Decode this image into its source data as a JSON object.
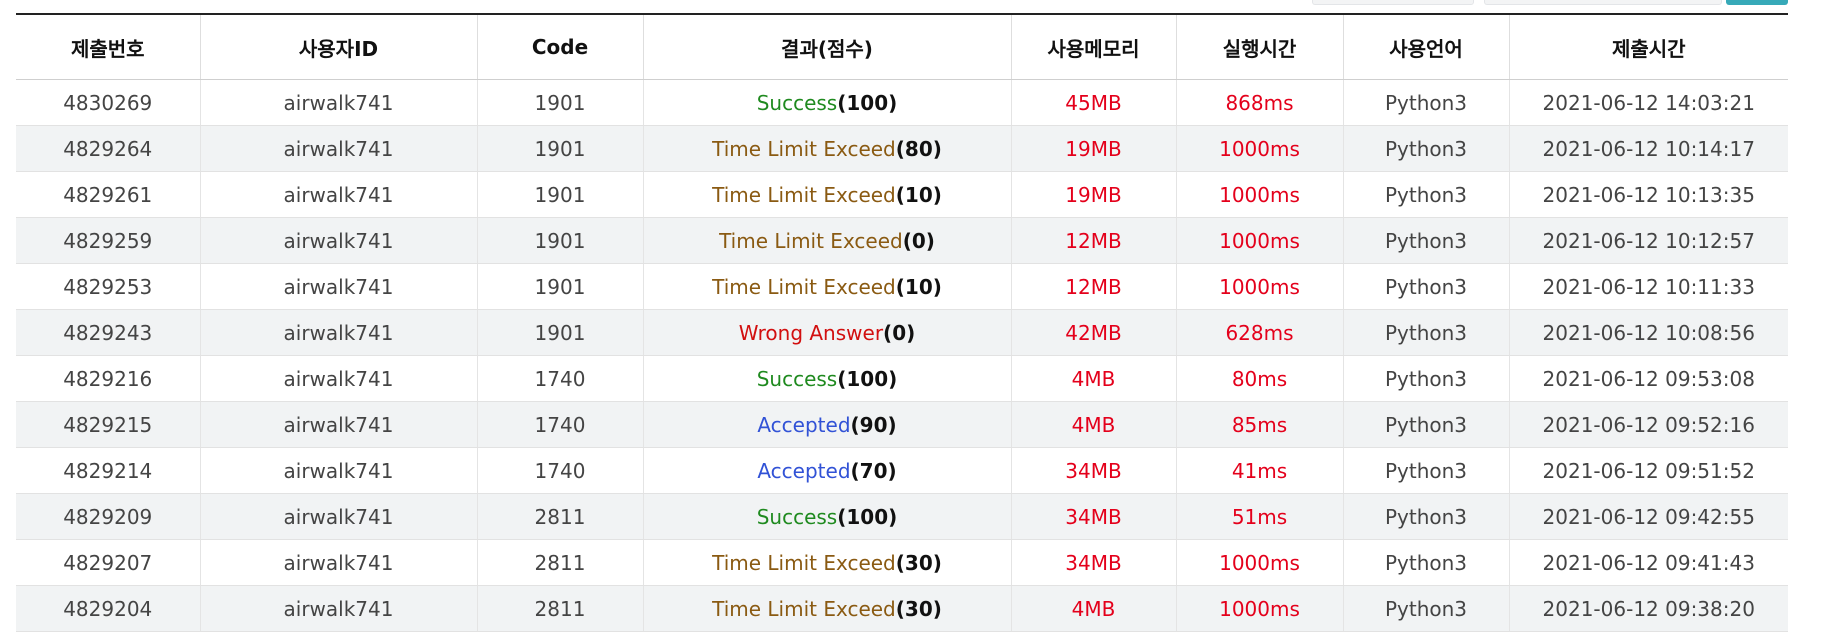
{
  "colors": {
    "success": "#1f8a1f",
    "time_limit": "#8a5a12",
    "wrong_answer": "#d20f0f",
    "accepted": "#3152d6",
    "metric_red": "#e4001b",
    "row_alt_bg": "#f1f3f4"
  },
  "table": {
    "headers": {
      "submission_no": "제출번호",
      "user_id": "사용자ID",
      "code": "Code",
      "result": "결과(점수)",
      "memory": "사용메모리",
      "time": "실행시간",
      "language": "사용언어",
      "submitted_at": "제출시간"
    },
    "rows": [
      {
        "id": "4830269",
        "user": "airwalk741",
        "code": "1901",
        "result": "Success",
        "kind": "success",
        "score": "(100)",
        "memory": "45MB",
        "time": "868ms",
        "lang": "Python3",
        "submitted": "2021-06-12 14:03:21"
      },
      {
        "id": "4829264",
        "user": "airwalk741",
        "code": "1901",
        "result": "Time Limit Exceed",
        "kind": "tle",
        "score": "(80)",
        "memory": "19MB",
        "time": "1000ms",
        "lang": "Python3",
        "submitted": "2021-06-12 10:14:17"
      },
      {
        "id": "4829261",
        "user": "airwalk741",
        "code": "1901",
        "result": "Time Limit Exceed",
        "kind": "tle",
        "score": "(10)",
        "memory": "19MB",
        "time": "1000ms",
        "lang": "Python3",
        "submitted": "2021-06-12 10:13:35"
      },
      {
        "id": "4829259",
        "user": "airwalk741",
        "code": "1901",
        "result": "Time Limit Exceed",
        "kind": "tle",
        "score": "(0)",
        "memory": "12MB",
        "time": "1000ms",
        "lang": "Python3",
        "submitted": "2021-06-12 10:12:57"
      },
      {
        "id": "4829253",
        "user": "airwalk741",
        "code": "1901",
        "result": "Time Limit Exceed",
        "kind": "tle",
        "score": "(10)",
        "memory": "12MB",
        "time": "1000ms",
        "lang": "Python3",
        "submitted": "2021-06-12 10:11:33"
      },
      {
        "id": "4829243",
        "user": "airwalk741",
        "code": "1901",
        "result": "Wrong Answer",
        "kind": "wa",
        "score": "(0)",
        "memory": "42MB",
        "time": "628ms",
        "lang": "Python3",
        "submitted": "2021-06-12 10:08:56"
      },
      {
        "id": "4829216",
        "user": "airwalk741",
        "code": "1740",
        "result": "Success",
        "kind": "success",
        "score": "(100)",
        "memory": "4MB",
        "time": "80ms",
        "lang": "Python3",
        "submitted": "2021-06-12 09:53:08"
      },
      {
        "id": "4829215",
        "user": "airwalk741",
        "code": "1740",
        "result": "Accepted",
        "kind": "accepted",
        "score": "(90)",
        "memory": "4MB",
        "time": "85ms",
        "lang": "Python3",
        "submitted": "2021-06-12 09:52:16"
      },
      {
        "id": "4829214",
        "user": "airwalk741",
        "code": "1740",
        "result": "Accepted",
        "kind": "accepted",
        "score": "(70)",
        "memory": "34MB",
        "time": "41ms",
        "lang": "Python3",
        "submitted": "2021-06-12 09:51:52"
      },
      {
        "id": "4829209",
        "user": "airwalk741",
        "code": "2811",
        "result": "Success",
        "kind": "success",
        "score": "(100)",
        "memory": "34MB",
        "time": "51ms",
        "lang": "Python3",
        "submitted": "2021-06-12 09:42:55"
      },
      {
        "id": "4829207",
        "user": "airwalk741",
        "code": "2811",
        "result": "Time Limit Exceed",
        "kind": "tle",
        "score": "(30)",
        "memory": "34MB",
        "time": "1000ms",
        "lang": "Python3",
        "submitted": "2021-06-12 09:41:43"
      },
      {
        "id": "4829204",
        "user": "airwalk741",
        "code": "2811",
        "result": "Time Limit Exceed",
        "kind": "tle",
        "score": "(30)",
        "memory": "4MB",
        "time": "1000ms",
        "lang": "Python3",
        "submitted": "2021-06-12 09:38:20"
      }
    ]
  }
}
